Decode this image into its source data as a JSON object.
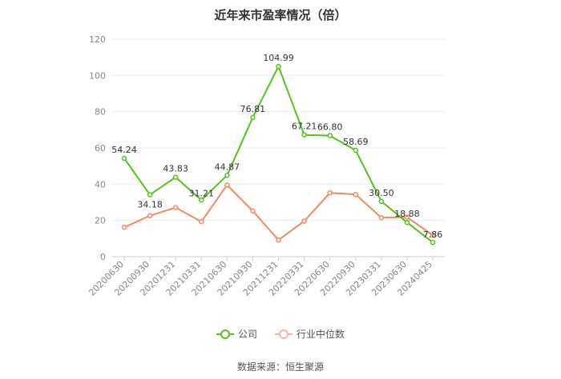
{
  "chart_data": {
    "type": "line",
    "title": "近年来市盈率情况（倍）",
    "categories": [
      "20200630",
      "20200930",
      "20201231",
      "20210331",
      "20210630",
      "20210930",
      "20211231",
      "20220331",
      "20220630",
      "20220930",
      "20230331",
      "20230630",
      "20240425"
    ],
    "series": [
      {
        "name": "公司",
        "color": "#52c41a",
        "values": [
          54.24,
          34.18,
          43.83,
          31.21,
          44.87,
          76.81,
          104.99,
          67.21,
          66.8,
          58.69,
          30.5,
          18.88,
          7.86
        ],
        "show_labels": true
      },
      {
        "name": "行业中位数",
        "color": "#f5885e",
        "values": [
          16.2,
          22.6,
          27.1,
          19.3,
          39.5,
          25.2,
          9.2,
          19.6,
          35.2,
          34.3,
          21.5,
          21.8,
          11.8
        ],
        "show_labels": false
      }
    ],
    "ylim": [
      0,
      120
    ],
    "yticks": [
      0,
      20,
      40,
      60,
      80,
      100,
      120
    ],
    "grid": true,
    "legend_position": "bottom"
  },
  "footer": {
    "source": "数据来源：恒生聚源"
  }
}
